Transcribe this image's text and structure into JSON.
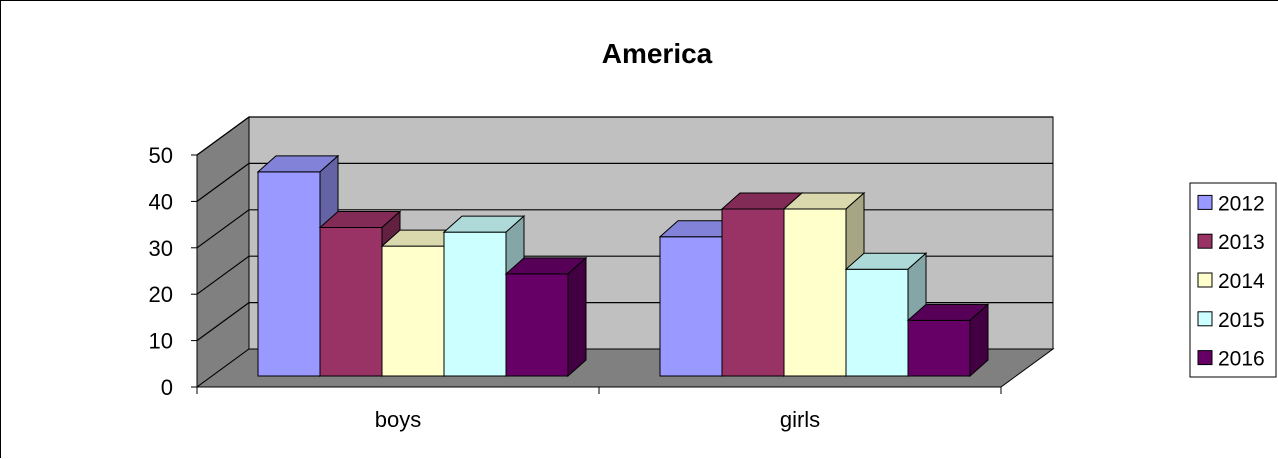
{
  "chart_data": {
    "type": "bar",
    "title": "America",
    "xlabel": "",
    "ylabel": "",
    "categories": [
      "boys",
      "girls"
    ],
    "series": [
      {
        "name": "2012",
        "color": "#9999ff",
        "values": [
          44,
          30
        ]
      },
      {
        "name": "2013",
        "color": "#993366",
        "values": [
          32,
          36
        ]
      },
      {
        "name": "2014",
        "color": "#ffffcc",
        "values": [
          28,
          36
        ]
      },
      {
        "name": "2015",
        "color": "#ccffff",
        "values": [
          31,
          23
        ]
      },
      {
        "name": "2016",
        "color": "#660066",
        "values": [
          22,
          12
        ]
      }
    ],
    "ylim": [
      0,
      50
    ],
    "yticks": [
      0,
      10,
      20,
      30,
      40,
      50
    ],
    "grid": true,
    "legend": "right",
    "style": "3d-clustered-column",
    "wall_color": "#c0c0c0",
    "floor_color": "#808080"
  }
}
